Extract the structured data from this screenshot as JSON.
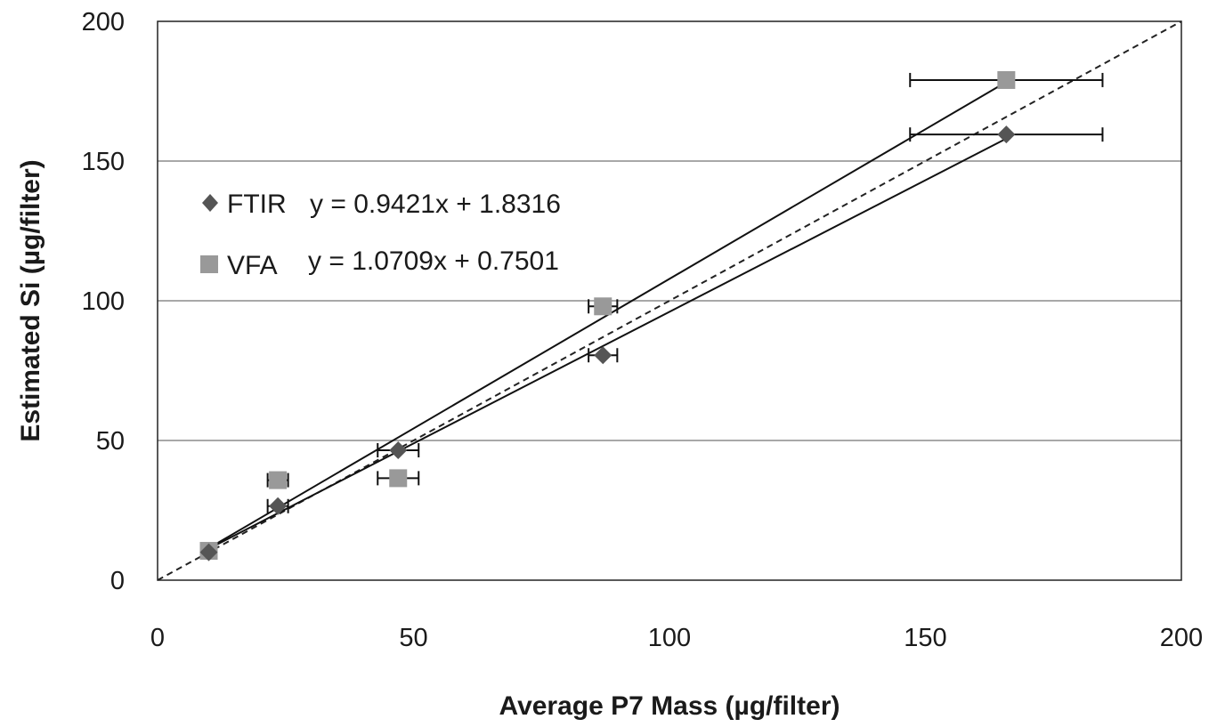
{
  "chart_data": {
    "type": "scatter",
    "xlabel": "Average P7 Mass (µg/filter)",
    "ylabel": "Estimated Si (µg/filter)",
    "xlim": [
      0,
      200
    ],
    "ylim": [
      0,
      200
    ],
    "x_ticks": [
      "0",
      "50",
      "100",
      "150",
      "200"
    ],
    "y_ticks": [
      "0",
      "50",
      "100",
      "150",
      "200"
    ],
    "grid": "horizontal",
    "legend_position": "top-left",
    "identity_line": {
      "style": "dashed",
      "from": [
        0,
        0
      ],
      "to": [
        200,
        200
      ]
    },
    "series": [
      {
        "name": "FTIR",
        "marker": "diamond",
        "color": "#555555",
        "equation": "y = 0.9421x + 1.8316",
        "fit": {
          "slope": 0.9421,
          "intercept": 1.8316
        },
        "points": [
          {
            "x": 10,
            "y": 10,
            "xerr": 0
          },
          {
            "x": 23.5,
            "y": 26.5,
            "xerr": 2
          },
          {
            "x": 47,
            "y": 46.5,
            "xerr": 4
          },
          {
            "x": 87,
            "y": 80.5,
            "xerr": 2.8
          },
          {
            "x": 165.8,
            "y": 159.5,
            "xerr": 18.8
          }
        ]
      },
      {
        "name": "VFA",
        "marker": "square",
        "color": "#999999",
        "equation": "y = 1.0709x + 0.7501",
        "fit": {
          "slope": 1.0709,
          "intercept": 0.7501
        },
        "points": [
          {
            "x": 10,
            "y": 10.5,
            "xerr": 0
          },
          {
            "x": 23.5,
            "y": 35.8,
            "xerr": 2
          },
          {
            "x": 47,
            "y": 36.5,
            "xerr": 4
          },
          {
            "x": 87,
            "y": 98,
            "xerr": 2.8
          },
          {
            "x": 165.8,
            "y": 179,
            "xerr": 18.8
          }
        ]
      }
    ]
  }
}
